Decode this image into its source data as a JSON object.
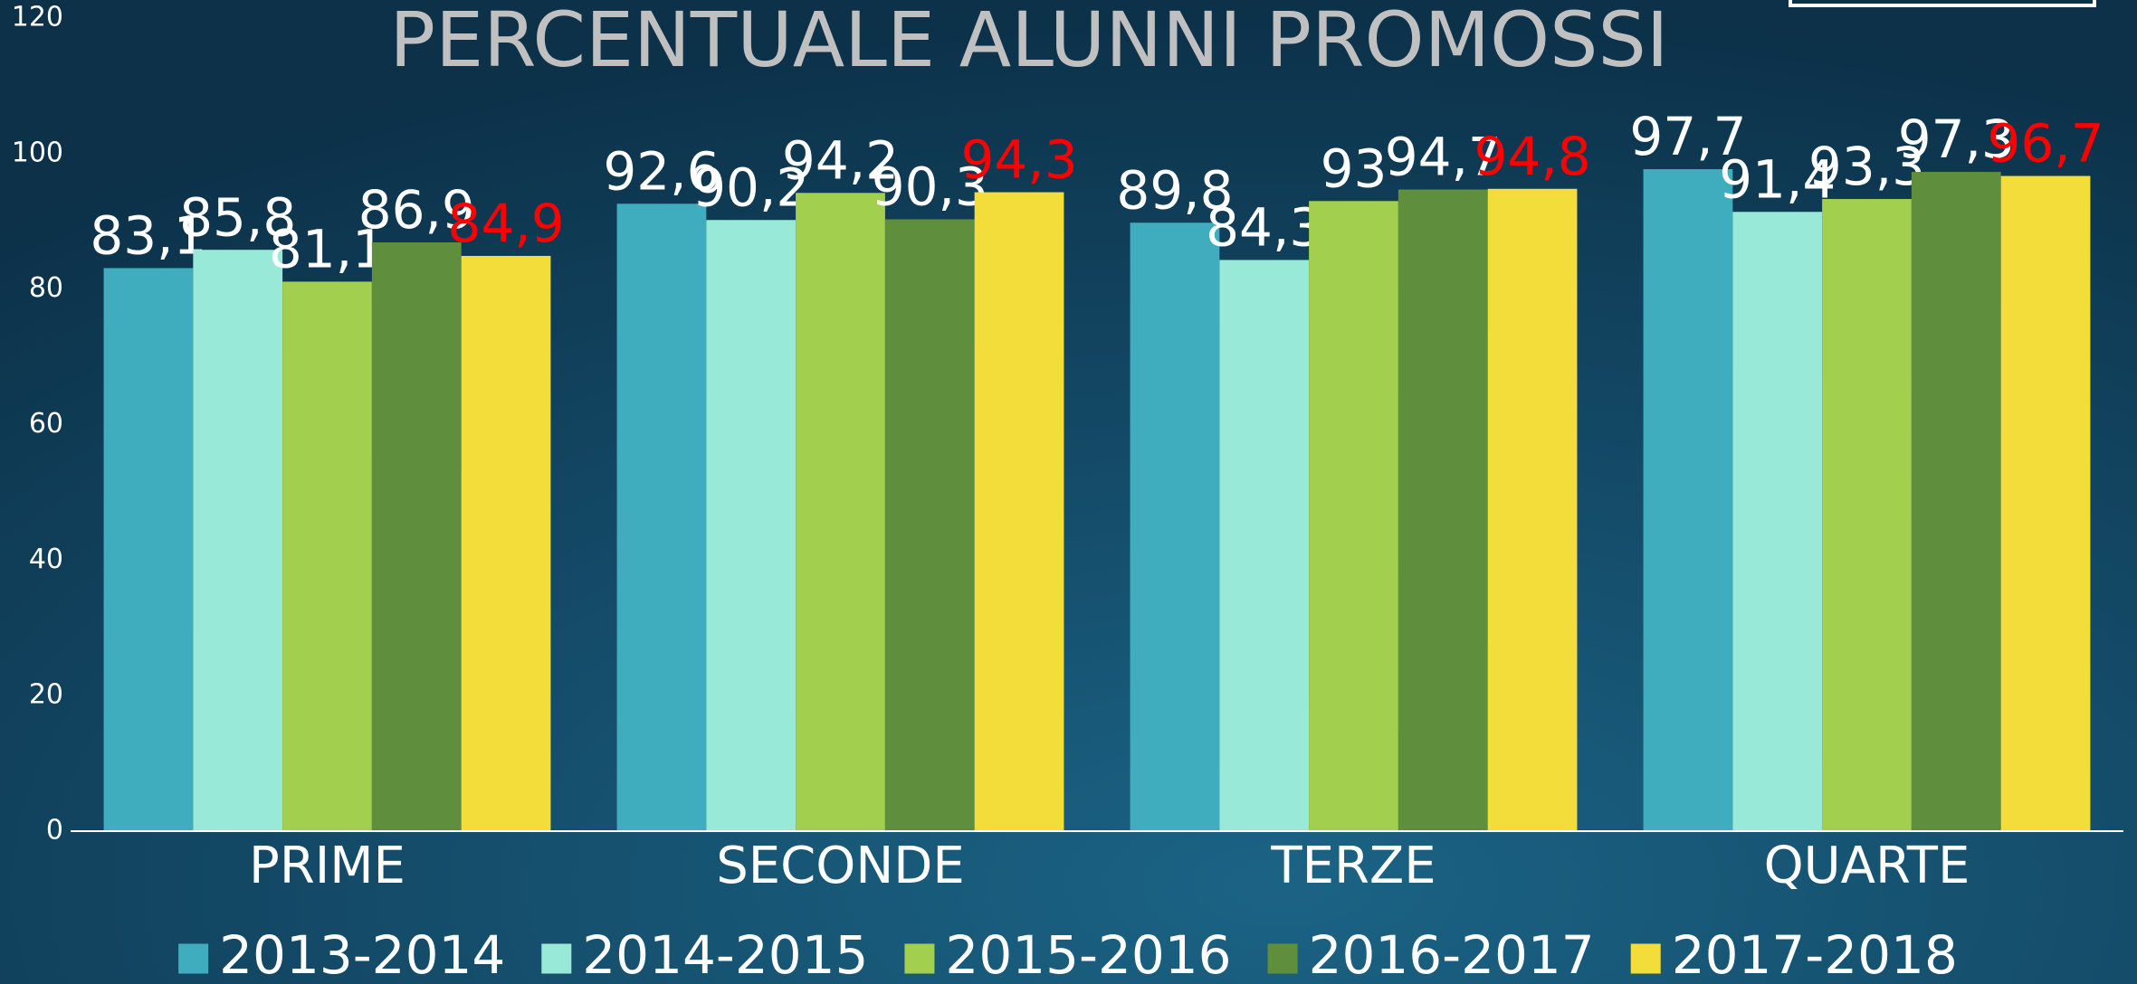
{
  "chart_data": {
    "type": "bar",
    "title": "PERCENTUALE ALUNNI PROMOSSI",
    "categories": [
      "PRIME",
      "SECONDE",
      "TERZE",
      "QUARTE"
    ],
    "series": [
      {
        "name": "2013-2014",
        "color": "#3fadbd",
        "label_color": "#ffffff",
        "values": [
          83.1,
          92.6,
          89.8,
          97.7
        ],
        "value_labels": [
          "83,1",
          "92,6",
          "89,8",
          "97,7"
        ]
      },
      {
        "name": "2014-2015",
        "color": "#98e9d7",
        "label_color": "#ffffff",
        "values": [
          85.8,
          90.2,
          84.3,
          91.4
        ],
        "value_labels": [
          "85,8",
          "90,2",
          "84,3",
          "91,4"
        ]
      },
      {
        "name": "2015-2016",
        "color": "#a2cf4e",
        "label_color": "#ffffff",
        "values": [
          81.1,
          94.2,
          93,
          93.3
        ],
        "value_labels": [
          "81,1",
          "94,2",
          "93",
          "93,3"
        ]
      },
      {
        "name": "2016-2017",
        "color": "#5f8f3c",
        "label_color": "#ffffff",
        "values": [
          86.9,
          90.3,
          94.7,
          97.3
        ],
        "value_labels": [
          "86,9",
          "90,3",
          "94,7",
          "97,3"
        ]
      },
      {
        "name": "2017-2018",
        "color": "#f3dd3b",
        "label_color": "#ff0000",
        "values": [
          84.9,
          94.3,
          94.8,
          96.7
        ],
        "value_labels": [
          "84,9",
          "94,3",
          "94,8",
          "96,7"
        ]
      }
    ],
    "ylim": [
      0,
      120
    ],
    "yticks": [
      0,
      20,
      40,
      60,
      80,
      100,
      120
    ],
    "grid": false,
    "legend": "bottom"
  }
}
